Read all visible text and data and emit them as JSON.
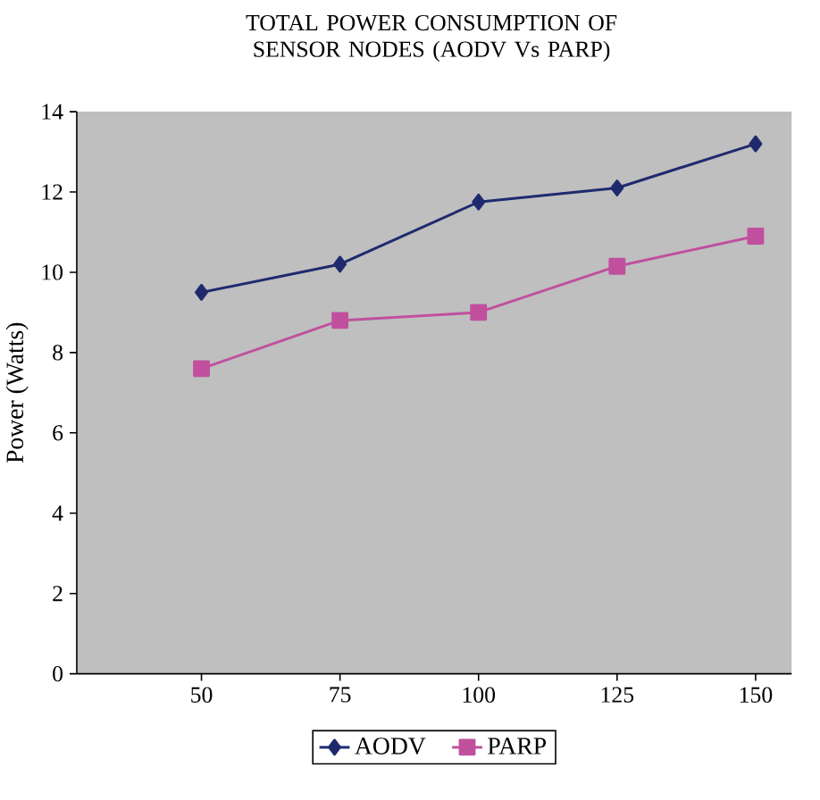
{
  "chart_data": {
    "type": "line",
    "title": "TOTAL POWER CONSUMPTION OF SENSOR NODES (AODV Vs PARP)",
    "ylabel": "Power (Watts)",
    "categories": [
      "50",
      "75",
      "100",
      "125",
      "150"
    ],
    "series": [
      {
        "name": "AODV",
        "color": "#1f2a6e",
        "marker": "diamond",
        "values": [
          9.5,
          10.2,
          11.75,
          12.1,
          13.2
        ]
      },
      {
        "name": "PARP",
        "color": "#c0509e",
        "marker": "square",
        "values": [
          7.6,
          8.8,
          9.0,
          10.15,
          10.9
        ]
      }
    ],
    "ylim": [
      0,
      14
    ],
    "yticks": [
      0,
      2,
      4,
      6,
      8,
      10,
      12,
      14
    ],
    "legend": "bottom",
    "grid": false,
    "line_style": "solid"
  }
}
